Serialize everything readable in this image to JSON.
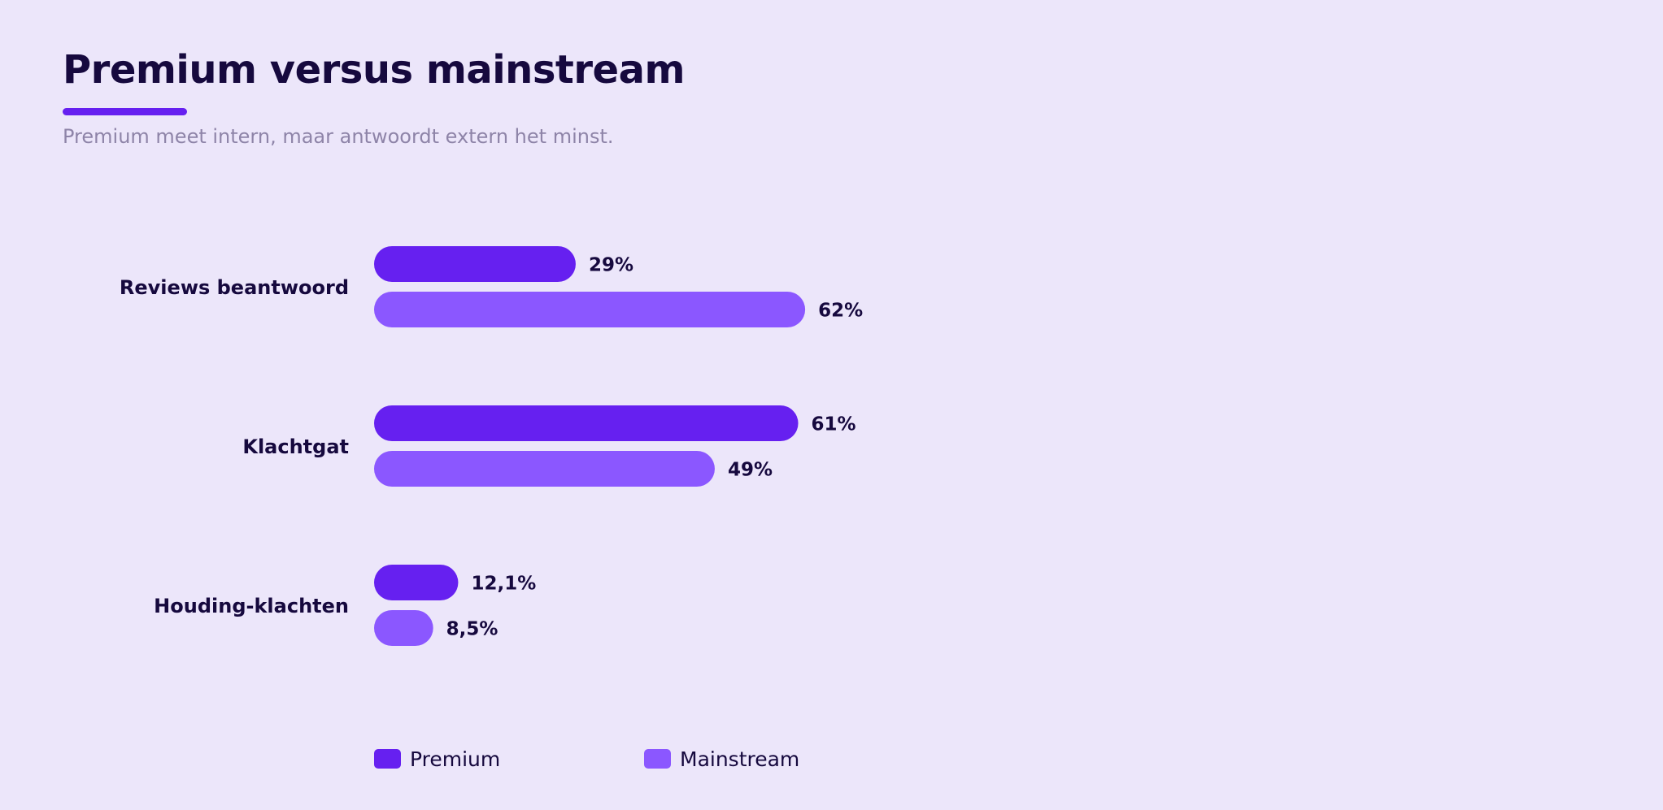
{
  "header": {
    "title": "Premium versus mainstream",
    "subtitle": "Premium meet intern, maar antwoordt extern het minst."
  },
  "colors": {
    "background": "#ECE6FA",
    "accent": "#6620F0",
    "premium": "#6620F0",
    "mainstream": "#8B57FF",
    "text": "#16093E",
    "subtitle": "#8E84A8"
  },
  "chart_data": {
    "type": "bar",
    "orientation": "horizontal",
    "title": "Premium versus mainstream",
    "subtitle": "Premium meet intern, maar antwoordt extern het minst.",
    "categories": [
      "Reviews beantwoord",
      "Klachtgat",
      "Houding-klachten"
    ],
    "series": [
      {
        "name": "Premium",
        "color": "#6620F0",
        "values": [
          29,
          61,
          12.1
        ],
        "labels": [
          "29%",
          "61%",
          "12,1%"
        ]
      },
      {
        "name": "Mainstream",
        "color": "#8B57FF",
        "values": [
          62,
          49,
          8.5
        ],
        "labels": [
          "62%",
          "49%",
          "8,5%"
        ]
      }
    ],
    "unit": "%",
    "xlim": [
      0,
      100
    ],
    "grid": false,
    "legend": "bottom"
  }
}
